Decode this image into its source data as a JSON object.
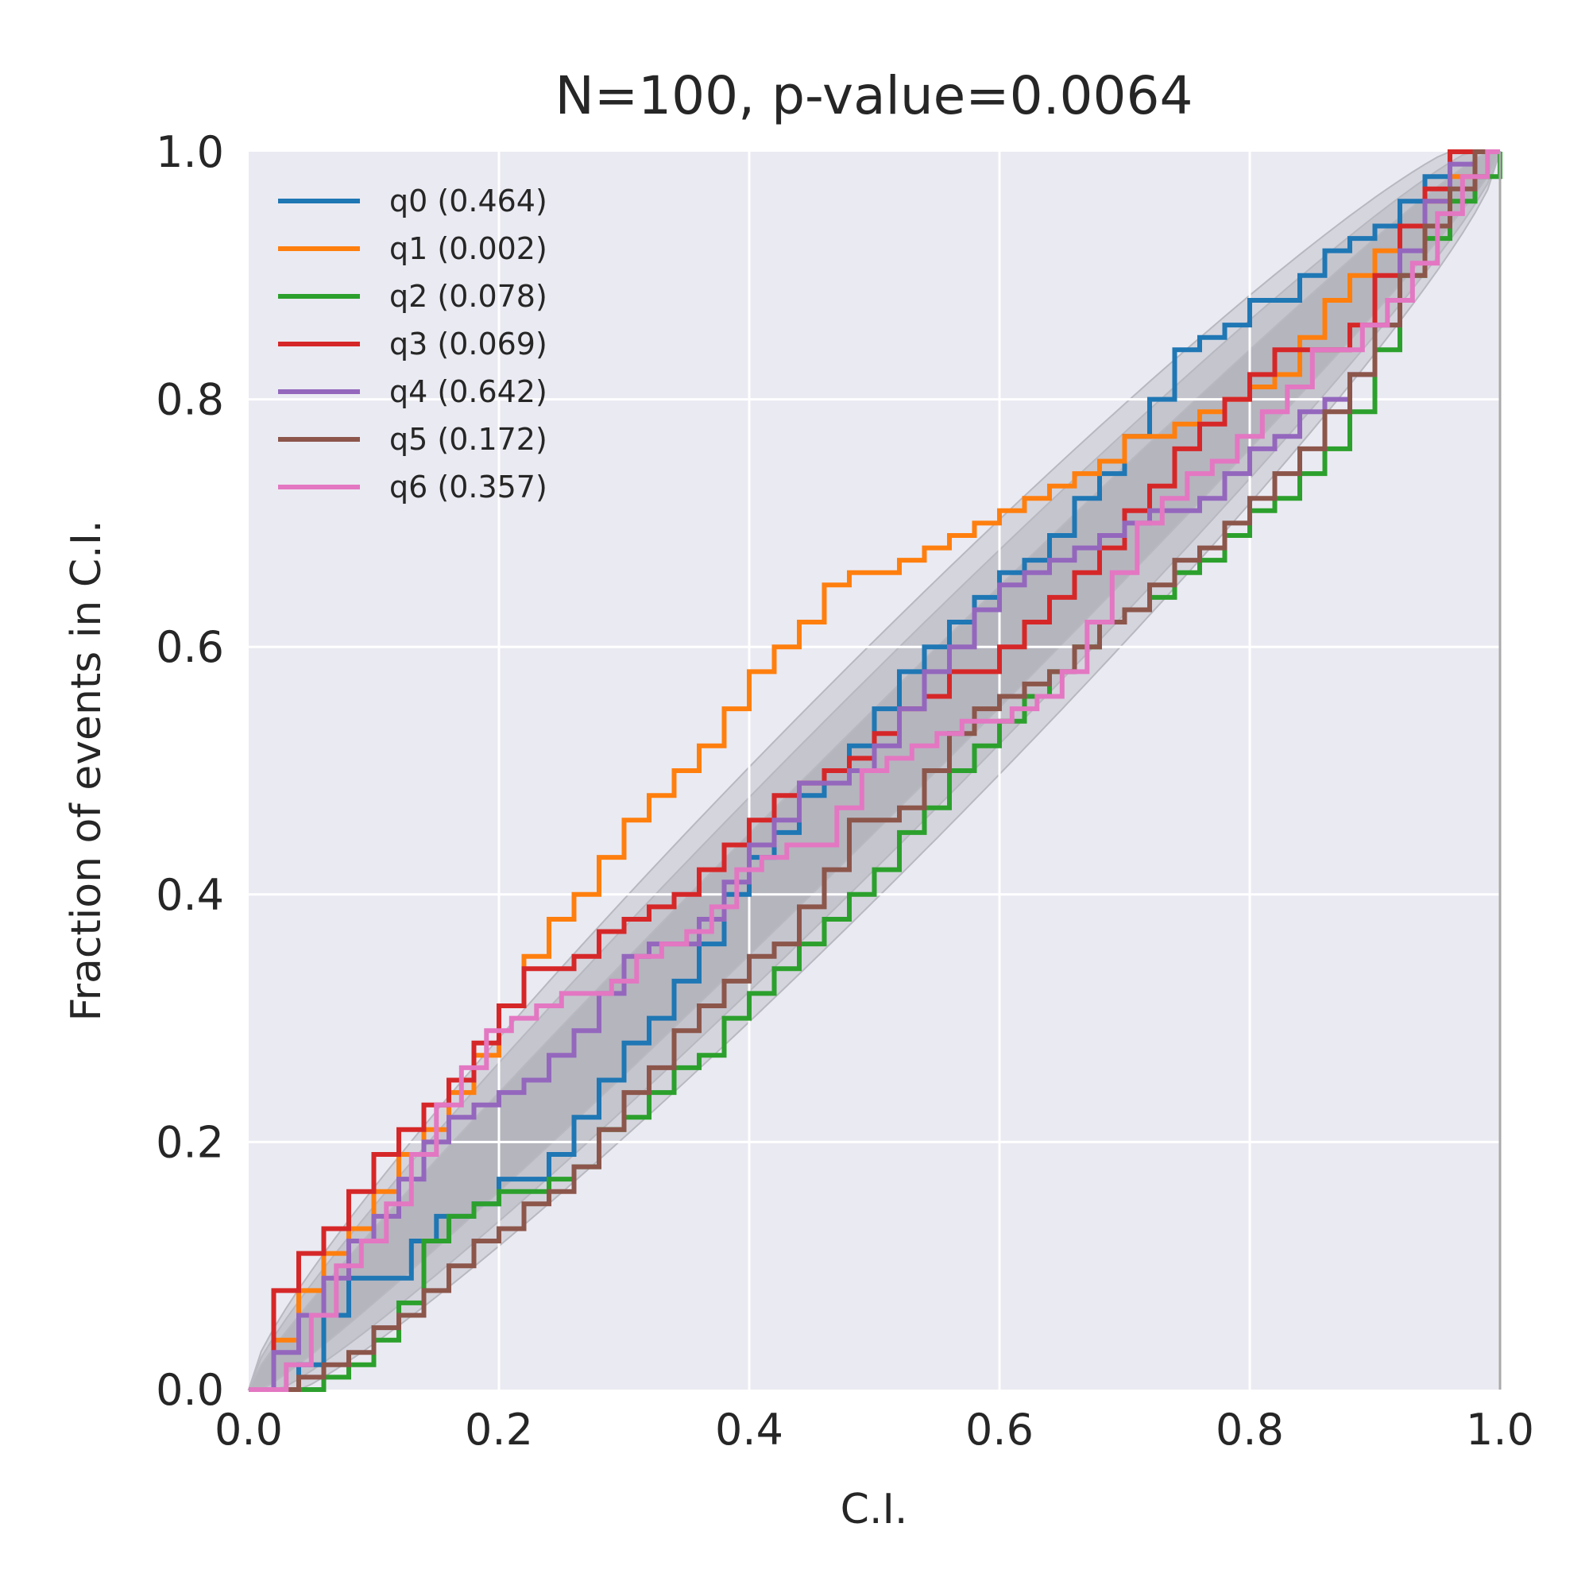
{
  "chart_data": {
    "type": "line",
    "title": "N=100, p-value=0.0064",
    "xlabel": "C.I.",
    "ylabel": "Fraction of events in C.I.",
    "xlim": [
      0,
      1
    ],
    "ylim": [
      0,
      1
    ],
    "x_ticks": [
      "0.0",
      "0.2",
      "0.4",
      "0.6",
      "0.8",
      "1.0"
    ],
    "y_ticks": [
      "0.0",
      "0.2",
      "0.4",
      "0.6",
      "0.8",
      "1.0"
    ],
    "grid": true,
    "legend_position": "upper-left",
    "confidence_bands": [
      {
        "level": "inner",
        "half_width": 0.05
      },
      {
        "level": "middle",
        "half_width": 0.08
      },
      {
        "level": "outer",
        "half_width": 0.105
      }
    ],
    "series": [
      {
        "name": "q0 (0.464)",
        "color": "#1f77b4",
        "x": [
          0.0,
          0.04,
          0.06,
          0.08,
          0.1,
          0.13,
          0.15,
          0.18,
          0.2,
          0.24,
          0.26,
          0.28,
          0.3,
          0.32,
          0.34,
          0.36,
          0.38,
          0.4,
          0.42,
          0.44,
          0.46,
          0.48,
          0.5,
          0.52,
          0.54,
          0.56,
          0.58,
          0.6,
          0.62,
          0.64,
          0.66,
          0.68,
          0.7,
          0.72,
          0.74,
          0.76,
          0.78,
          0.8,
          0.82,
          0.84,
          0.86,
          0.88,
          0.9,
          0.92,
          0.94,
          0.96,
          0.98,
          1.0
        ],
        "y": [
          0.0,
          0.02,
          0.06,
          0.09,
          0.09,
          0.12,
          0.14,
          0.15,
          0.17,
          0.19,
          0.22,
          0.25,
          0.28,
          0.3,
          0.33,
          0.36,
          0.4,
          0.43,
          0.45,
          0.48,
          0.5,
          0.52,
          0.55,
          0.58,
          0.6,
          0.62,
          0.64,
          0.66,
          0.67,
          0.69,
          0.72,
          0.74,
          0.77,
          0.8,
          0.84,
          0.85,
          0.86,
          0.88,
          0.88,
          0.9,
          0.92,
          0.93,
          0.94,
          0.96,
          0.98,
          1.0,
          1.0,
          1.0
        ]
      },
      {
        "name": "q1 (0.002)",
        "color": "#ff7f0e",
        "x": [
          0.0,
          0.02,
          0.04,
          0.06,
          0.08,
          0.1,
          0.12,
          0.14,
          0.16,
          0.18,
          0.2,
          0.22,
          0.24,
          0.26,
          0.28,
          0.3,
          0.32,
          0.34,
          0.36,
          0.38,
          0.4,
          0.42,
          0.44,
          0.46,
          0.48,
          0.5,
          0.52,
          0.54,
          0.56,
          0.58,
          0.6,
          0.62,
          0.64,
          0.66,
          0.68,
          0.7,
          0.72,
          0.74,
          0.76,
          0.78,
          0.8,
          0.82,
          0.84,
          0.86,
          0.88,
          0.9,
          0.92,
          0.94,
          0.96,
          0.98,
          1.0
        ],
        "y": [
          0.0,
          0.04,
          0.08,
          0.11,
          0.13,
          0.16,
          0.19,
          0.21,
          0.24,
          0.27,
          0.31,
          0.35,
          0.38,
          0.4,
          0.43,
          0.46,
          0.48,
          0.5,
          0.52,
          0.55,
          0.58,
          0.6,
          0.62,
          0.65,
          0.66,
          0.66,
          0.67,
          0.68,
          0.69,
          0.7,
          0.71,
          0.72,
          0.73,
          0.74,
          0.75,
          0.77,
          0.77,
          0.78,
          0.79,
          0.8,
          0.81,
          0.82,
          0.85,
          0.88,
          0.9,
          0.92,
          0.94,
          0.96,
          0.98,
          1.0,
          1.0
        ]
      },
      {
        "name": "q2 (0.078)",
        "color": "#2ca02c",
        "x": [
          0.0,
          0.06,
          0.08,
          0.1,
          0.12,
          0.14,
          0.16,
          0.18,
          0.2,
          0.22,
          0.24,
          0.26,
          0.28,
          0.3,
          0.32,
          0.34,
          0.36,
          0.38,
          0.4,
          0.42,
          0.44,
          0.46,
          0.48,
          0.5,
          0.52,
          0.54,
          0.56,
          0.58,
          0.6,
          0.62,
          0.64,
          0.66,
          0.68,
          0.7,
          0.72,
          0.74,
          0.76,
          0.78,
          0.8,
          0.82,
          0.84,
          0.86,
          0.88,
          0.9,
          0.92,
          0.94,
          0.96,
          0.98,
          1.0
        ],
        "y": [
          0.0,
          0.01,
          0.02,
          0.04,
          0.07,
          0.12,
          0.14,
          0.15,
          0.16,
          0.16,
          0.17,
          0.18,
          0.21,
          0.22,
          0.24,
          0.26,
          0.27,
          0.3,
          0.32,
          0.34,
          0.36,
          0.38,
          0.4,
          0.42,
          0.45,
          0.47,
          0.5,
          0.52,
          0.54,
          0.56,
          0.58,
          0.6,
          0.62,
          0.63,
          0.64,
          0.66,
          0.67,
          0.69,
          0.71,
          0.72,
          0.74,
          0.76,
          0.79,
          0.84,
          0.9,
          0.93,
          0.96,
          0.98,
          1.0
        ]
      },
      {
        "name": "q3 (0.069)",
        "color": "#d62728",
        "x": [
          0.0,
          0.02,
          0.04,
          0.06,
          0.08,
          0.1,
          0.12,
          0.14,
          0.16,
          0.18,
          0.2,
          0.22,
          0.24,
          0.26,
          0.28,
          0.3,
          0.32,
          0.34,
          0.36,
          0.38,
          0.4,
          0.42,
          0.44,
          0.46,
          0.48,
          0.5,
          0.52,
          0.54,
          0.56,
          0.58,
          0.6,
          0.62,
          0.64,
          0.66,
          0.68,
          0.7,
          0.72,
          0.74,
          0.76,
          0.78,
          0.8,
          0.82,
          0.84,
          0.86,
          0.88,
          0.9,
          0.92,
          0.94,
          0.96,
          0.98,
          1.0
        ],
        "y": [
          0.0,
          0.08,
          0.11,
          0.13,
          0.16,
          0.19,
          0.21,
          0.23,
          0.25,
          0.28,
          0.31,
          0.34,
          0.34,
          0.35,
          0.37,
          0.38,
          0.39,
          0.4,
          0.42,
          0.44,
          0.46,
          0.48,
          0.49,
          0.5,
          0.51,
          0.53,
          0.55,
          0.56,
          0.58,
          0.58,
          0.6,
          0.62,
          0.64,
          0.66,
          0.68,
          0.71,
          0.73,
          0.76,
          0.78,
          0.8,
          0.82,
          0.84,
          0.84,
          0.84,
          0.86,
          0.9,
          0.94,
          0.97,
          1.0,
          1.0,
          1.0
        ]
      },
      {
        "name": "q4 (0.642)",
        "color": "#9467bd",
        "x": [
          0.0,
          0.02,
          0.04,
          0.06,
          0.08,
          0.1,
          0.12,
          0.14,
          0.16,
          0.18,
          0.2,
          0.22,
          0.24,
          0.26,
          0.28,
          0.3,
          0.32,
          0.34,
          0.36,
          0.38,
          0.4,
          0.42,
          0.44,
          0.46,
          0.48,
          0.5,
          0.52,
          0.54,
          0.56,
          0.58,
          0.6,
          0.62,
          0.64,
          0.66,
          0.68,
          0.7,
          0.72,
          0.74,
          0.76,
          0.78,
          0.8,
          0.82,
          0.84,
          0.86,
          0.88,
          0.9,
          0.92,
          0.94,
          0.96,
          0.98,
          1.0
        ],
        "y": [
          0.0,
          0.03,
          0.06,
          0.09,
          0.12,
          0.14,
          0.17,
          0.2,
          0.22,
          0.23,
          0.24,
          0.25,
          0.27,
          0.29,
          0.32,
          0.35,
          0.36,
          0.36,
          0.38,
          0.41,
          0.44,
          0.46,
          0.49,
          0.49,
          0.5,
          0.52,
          0.55,
          0.58,
          0.6,
          0.63,
          0.65,
          0.66,
          0.67,
          0.68,
          0.69,
          0.7,
          0.71,
          0.71,
          0.72,
          0.74,
          0.76,
          0.77,
          0.79,
          0.8,
          0.82,
          0.86,
          0.92,
          0.96,
          0.99,
          1.0,
          1.0
        ]
      },
      {
        "name": "q5 (0.172)",
        "color": "#8c564b",
        "x": [
          0.0,
          0.04,
          0.06,
          0.08,
          0.1,
          0.12,
          0.14,
          0.16,
          0.18,
          0.2,
          0.22,
          0.24,
          0.26,
          0.28,
          0.3,
          0.32,
          0.34,
          0.36,
          0.38,
          0.4,
          0.42,
          0.44,
          0.46,
          0.48,
          0.5,
          0.52,
          0.54,
          0.56,
          0.58,
          0.6,
          0.62,
          0.64,
          0.66,
          0.68,
          0.7,
          0.72,
          0.74,
          0.76,
          0.78,
          0.8,
          0.82,
          0.84,
          0.86,
          0.88,
          0.9,
          0.92,
          0.94,
          0.96,
          0.98,
          1.0
        ],
        "y": [
          0.0,
          0.01,
          0.02,
          0.03,
          0.05,
          0.06,
          0.08,
          0.1,
          0.12,
          0.13,
          0.15,
          0.16,
          0.18,
          0.21,
          0.24,
          0.26,
          0.29,
          0.31,
          0.33,
          0.35,
          0.36,
          0.39,
          0.42,
          0.46,
          0.46,
          0.47,
          0.5,
          0.53,
          0.55,
          0.56,
          0.57,
          0.58,
          0.6,
          0.62,
          0.63,
          0.65,
          0.67,
          0.68,
          0.7,
          0.72,
          0.74,
          0.76,
          0.79,
          0.82,
          0.86,
          0.9,
          0.94,
          0.97,
          1.0,
          1.0
        ]
      },
      {
        "name": "q6 (0.357)",
        "color": "#e377c2",
        "x": [
          0.0,
          0.03,
          0.05,
          0.07,
          0.09,
          0.11,
          0.13,
          0.15,
          0.17,
          0.19,
          0.21,
          0.23,
          0.25,
          0.27,
          0.29,
          0.31,
          0.33,
          0.35,
          0.37,
          0.39,
          0.41,
          0.43,
          0.45,
          0.47,
          0.49,
          0.51,
          0.53,
          0.55,
          0.57,
          0.59,
          0.61,
          0.63,
          0.65,
          0.67,
          0.69,
          0.71,
          0.73,
          0.75,
          0.77,
          0.79,
          0.81,
          0.83,
          0.85,
          0.87,
          0.89,
          0.91,
          0.93,
          0.95,
          0.97,
          0.99,
          1.0
        ],
        "y": [
          0.0,
          0.02,
          0.06,
          0.1,
          0.12,
          0.15,
          0.19,
          0.23,
          0.26,
          0.29,
          0.3,
          0.31,
          0.32,
          0.32,
          0.33,
          0.35,
          0.36,
          0.37,
          0.39,
          0.42,
          0.43,
          0.44,
          0.44,
          0.47,
          0.5,
          0.51,
          0.52,
          0.53,
          0.54,
          0.54,
          0.55,
          0.56,
          0.58,
          0.62,
          0.66,
          0.7,
          0.72,
          0.74,
          0.75,
          0.77,
          0.79,
          0.81,
          0.84,
          0.84,
          0.86,
          0.88,
          0.91,
          0.95,
          0.98,
          1.0,
          1.0
        ]
      }
    ]
  }
}
